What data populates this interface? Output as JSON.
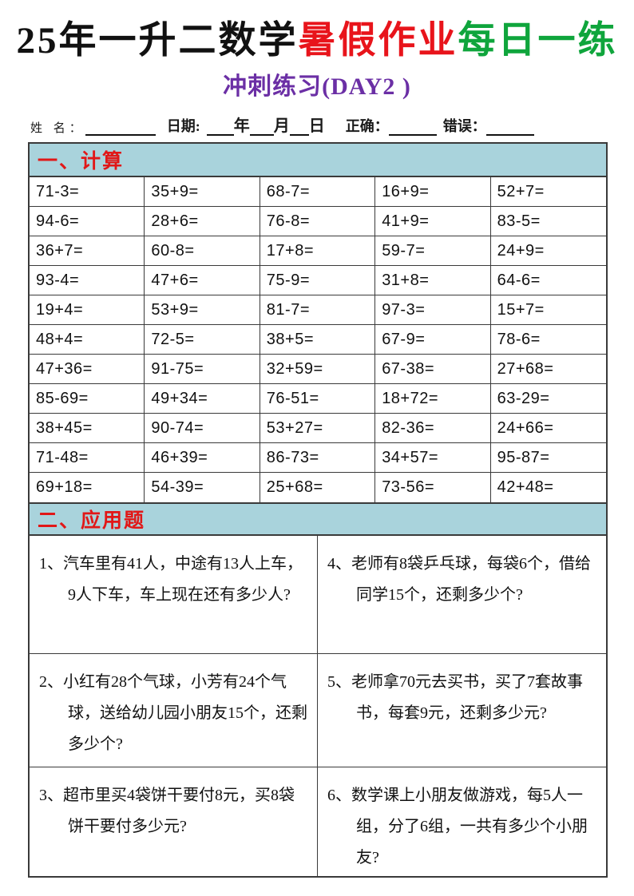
{
  "title": {
    "black_part": "25年一升二数学",
    "red_part": "暑假作业",
    "green_part": "每日一练"
  },
  "subtitle": "冲刺练习(DAY2 )",
  "info_bar": {
    "name_label": "姓 名：",
    "date_label": "日期:",
    "year_label": "年",
    "month_label": "月",
    "day_label": "日",
    "correct_label": "正确：",
    "wrong_label": "错误："
  },
  "colors": {
    "teal_header_bg": "#a9d3dc",
    "section_title_red": "#e11717",
    "title_red": "#e8141b",
    "title_green": "#0fa53c",
    "subtitle_purple": "#6b2fa5",
    "border_dark": "#3a3a3a"
  },
  "section1": {
    "title": "一、计算",
    "rows": [
      [
        "71-3=",
        "35+9=",
        "68-7=",
        "16+9=",
        "52+7="
      ],
      [
        "94-6=",
        "28+6=",
        "76-8=",
        "41+9=",
        "83-5="
      ],
      [
        "36+7=",
        "60-8=",
        "17+8=",
        "59-7=",
        "24+9="
      ],
      [
        "93-4=",
        "47+6=",
        "75-9=",
        "31+8=",
        "64-6="
      ],
      [
        "19+4=",
        "53+9=",
        "81-7=",
        "97-3=",
        "15+7="
      ],
      [
        "48+4=",
        "72-5=",
        "38+5=",
        "67-9=",
        "78-6="
      ],
      [
        "47+36=",
        "91-75=",
        "32+59=",
        "67-38=",
        "27+68="
      ],
      [
        "85-69=",
        "49+34=",
        "76-51=",
        "18+72=",
        "63-29="
      ],
      [
        "38+45=",
        "90-74=",
        "53+27=",
        "82-36=",
        "24+66="
      ],
      [
        "71-48=",
        "46+39=",
        "86-73=",
        "34+57=",
        "95-87="
      ],
      [
        "69+18=",
        "54-39=",
        "25+68=",
        "73-56=",
        "42+48="
      ]
    ]
  },
  "section2": {
    "title": "二、应用题",
    "left_problems": [
      {
        "num": "1、",
        "text": "汽车里有41人，中途有13人上车，9人下车，车上现在还有多少人?"
      },
      {
        "num": "2、",
        "text": "小红有28个气球，小芳有24个气球，送给幼儿园小朋友15个，还剩多少个?"
      },
      {
        "num": "3、",
        "text": "超市里买4袋饼干要付8元，买8袋饼干要付多少元?"
      }
    ],
    "right_problems": [
      {
        "num": "4、",
        "text": "老师有8袋乒乓球，每袋6个，借给同学15个，还剩多少个?"
      },
      {
        "num": "5、",
        "text": "老师拿70元去买书，买了7套故事书，每套9元，还剩多少元?"
      },
      {
        "num": "6、",
        "text": "数学课上小朋友做游戏，每5人一组，分了6组，一共有多少个小朋友?"
      }
    ]
  }
}
